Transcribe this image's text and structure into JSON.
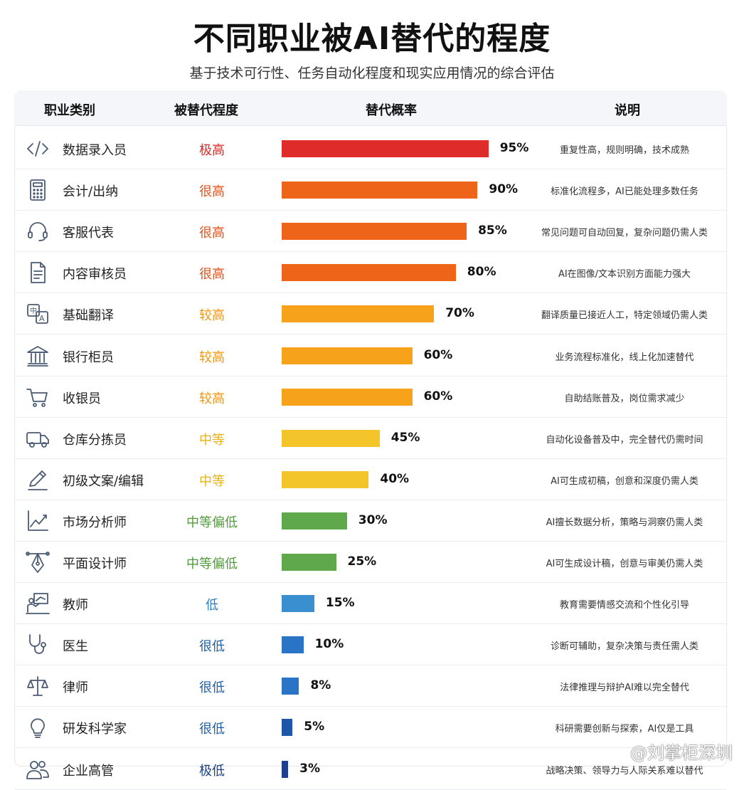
{
  "title": "不同职业被AI替代的程度",
  "subtitle": "基于技术可行性、任务自动化程度和现实应用情况的综合评估",
  "headers": {
    "category": "职业类别",
    "level": "被替代程度",
    "probability": "替代概率",
    "note": "说明"
  },
  "watermark": "@刘掌柜深圳",
  "chart_data": {
    "type": "bar",
    "orientation": "horizontal",
    "xlim": [
      0,
      100
    ],
    "unit": "%",
    "rows": [
      {
        "icon": "code-icon",
        "name": "数据录入员",
        "level": "极高",
        "level_color": "#d92a2a",
        "color": "#e02b2b",
        "value": 95,
        "label": "95%",
        "note": "重复性高，规则明确，技术成熟"
      },
      {
        "icon": "calculator-icon",
        "name": "会计/出纳",
        "level": "很高",
        "level_color": "#e0521a",
        "color": "#ee6418",
        "value": 90,
        "label": "90%",
        "note": "标准化流程多，AI已能处理多数任务"
      },
      {
        "icon": "headset-icon",
        "name": "客服代表",
        "level": "很高",
        "level_color": "#e0521a",
        "color": "#ee6418",
        "value": 85,
        "label": "85%",
        "note": "常见问题可自动回复，复杂问题仍需人类"
      },
      {
        "icon": "document-icon",
        "name": "内容审核员",
        "level": "很高",
        "level_color": "#e0521a",
        "color": "#ee6418",
        "value": 80,
        "label": "80%",
        "note": "AI在图像/文本识别方面能力强大"
      },
      {
        "icon": "translate-icon",
        "name": "基础翻译",
        "level": "较高",
        "level_color": "#f0960e",
        "color": "#f7a21b",
        "value": 70,
        "label": "70%",
        "note": "翻译质量已接近人工，特定领域仍需人类"
      },
      {
        "icon": "bank-icon",
        "name": "银行柜员",
        "level": "较高",
        "level_color": "#f0960e",
        "color": "#f7a21b",
        "value": 60,
        "label": "60%",
        "note": "业务流程标准化，线上化加速替代"
      },
      {
        "icon": "cart-icon",
        "name": "收银员",
        "level": "较高",
        "level_color": "#f0960e",
        "color": "#f7a21b",
        "value": 60,
        "label": "60%",
        "note": "自助结账普及，岗位需求减少"
      },
      {
        "icon": "truck-icon",
        "name": "仓库分拣员",
        "level": "中等",
        "level_color": "#e9b21a",
        "color": "#f4c52a",
        "value": 45,
        "label": "45%",
        "note": "自动化设备普及中，完全替代仍需时间"
      },
      {
        "icon": "pen-icon",
        "name": "初级文案/编辑",
        "level": "中等",
        "level_color": "#e9b21a",
        "color": "#f4c52a",
        "value": 40,
        "label": "40%",
        "note": "AI可生成初稿，创意和深度仍需人类"
      },
      {
        "icon": "line-chart-icon",
        "name": "市场分析师",
        "level": "中等偏低",
        "level_color": "#4f9a3a",
        "color": "#5fa84b",
        "value": 30,
        "label": "30%",
        "note": "AI擅长数据分析，策略与洞察仍需人类"
      },
      {
        "icon": "design-pen-icon",
        "name": "平面设计师",
        "level": "中等偏低",
        "level_color": "#4f9a3a",
        "color": "#5fa84b",
        "value": 25,
        "label": "25%",
        "note": "AI可生成设计稿，创意与审美仍需人类"
      },
      {
        "icon": "teacher-icon",
        "name": "教师",
        "level": "低",
        "level_color": "#2f7fc0",
        "color": "#3a8fd0",
        "value": 15,
        "label": "15%",
        "note": "教育需要情感交流和个性化引导"
      },
      {
        "icon": "stethoscope-icon",
        "name": "医生",
        "level": "很低",
        "level_color": "#1d5fa8",
        "color": "#2a74c8",
        "value": 10,
        "label": "10%",
        "note": "诊断可辅助，复杂决策与责任需人类"
      },
      {
        "icon": "scales-icon",
        "name": "律师",
        "level": "很低",
        "level_color": "#1d5fa8",
        "color": "#2a74c8",
        "value": 8,
        "label": "8%",
        "note": "法律推理与辩护AI难以完全替代"
      },
      {
        "icon": "lightbulb-icon",
        "name": "研发科学家",
        "level": "很低",
        "level_color": "#1d5fa8",
        "color": "#1f55a8",
        "value": 5,
        "label": "5%",
        "note": "科研需要创新与探索，AI仅是工具"
      },
      {
        "icon": "people-icon",
        "name": "企业高管",
        "level": "极低",
        "level_color": "#1a3f86",
        "color": "#1e3f8f",
        "value": 3,
        "label": "3%",
        "note": "战略决策、领导力与人际关系难以替代"
      }
    ]
  }
}
